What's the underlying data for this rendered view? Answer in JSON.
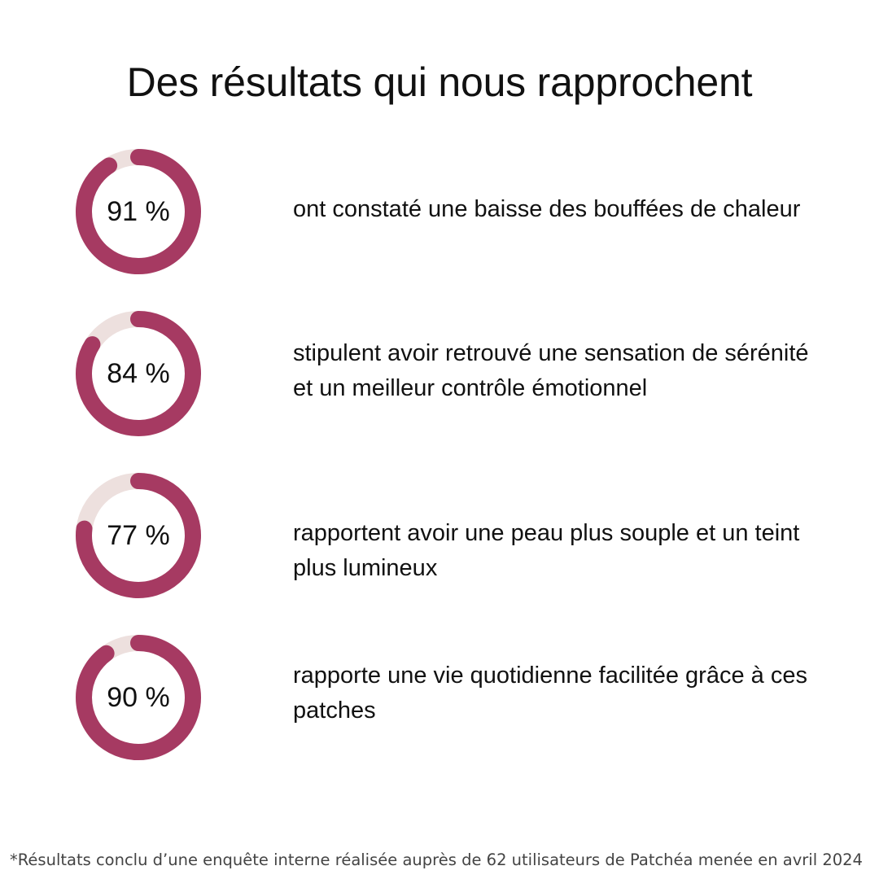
{
  "title": "Des résultats qui nous rapprochent",
  "colors": {
    "ring_fill": "#a63a62",
    "ring_track": "#ede0de"
  },
  "chart_data": {
    "type": "donut",
    "unit": "%",
    "items": [
      {
        "value": 91,
        "label": "91 %",
        "description": "ont constaté une baisse des bouffées de chaleur"
      },
      {
        "value": 84,
        "label": "84 %",
        "description": "stipulent avoir retrouvé une sensation de sérénité et un meilleur contrôle émotionnel"
      },
      {
        "value": 77,
        "label": "77 %",
        "description": "rapportent avoir une peau plus souple et un teint plus lumineux"
      },
      {
        "value": 90,
        "label": "90 %",
        "description": "rapporte une vie quotidienne facilitée grâce à ces patches"
      }
    ]
  },
  "footnote": "*Résultats conclu d’une enquête interne réalisée auprès de 62 utilisateurs de Patchéa menée en avril 2024"
}
